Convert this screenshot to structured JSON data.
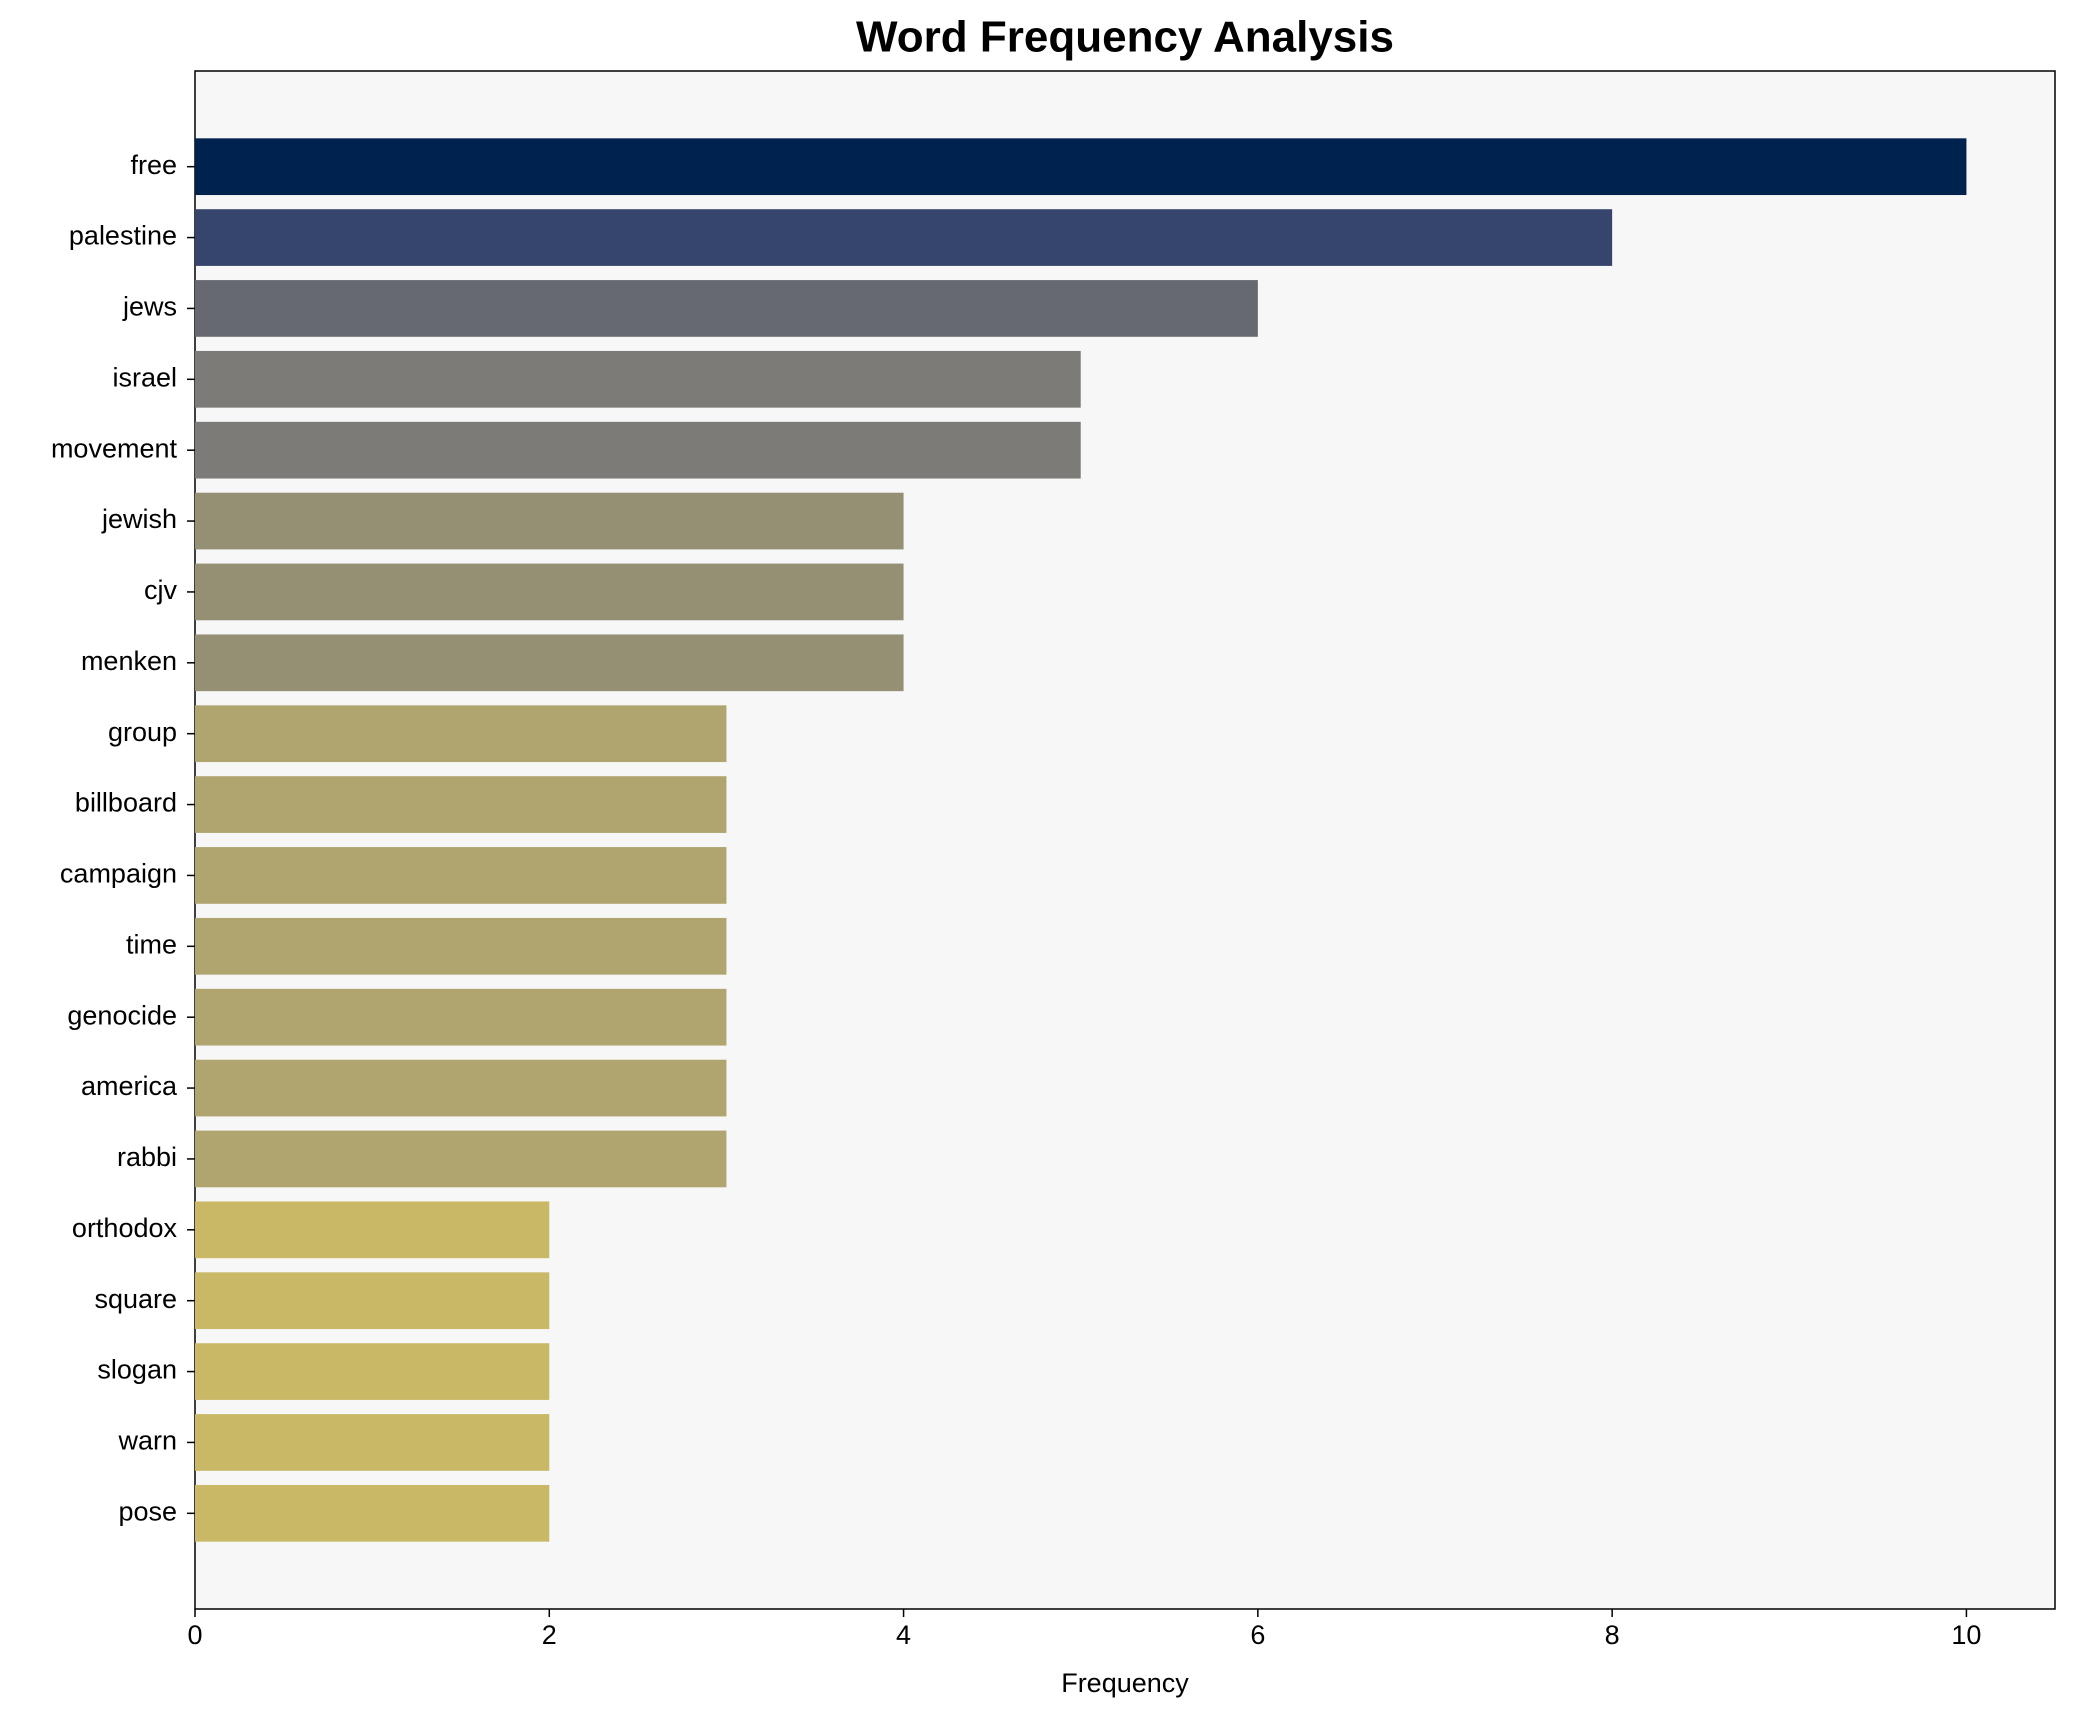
{
  "chart_data": {
    "type": "barh",
    "title": "Word Frequency Analysis",
    "x_label": "Frequency",
    "categories": [
      "free",
      "palestine",
      "jews",
      "israel",
      "movement",
      "jewish",
      "cjv",
      "menken",
      "group",
      "billboard",
      "campaign",
      "time",
      "genocide",
      "america",
      "rabbi",
      "orthodox",
      "square",
      "slogan",
      "warn",
      "pose"
    ],
    "values": [
      10,
      8,
      6,
      5,
      5,
      4,
      4,
      4,
      3,
      3,
      3,
      3,
      3,
      3,
      3,
      2,
      2,
      2,
      2,
      2
    ],
    "colors": [
      "#00224e",
      "#35456c",
      "#666970",
      "#7c7b78",
      "#7c7b78",
      "#958f74",
      "#958f74",
      "#958f74",
      "#b0a46f",
      "#b0a46f",
      "#b0a46f",
      "#b0a46f",
      "#b0a46f",
      "#b0a46f",
      "#b0a46f",
      "#c9b866",
      "#c9b866",
      "#c9b866",
      "#c9b866",
      "#c9b866"
    ],
    "xlim": [
      0,
      10.5
    ],
    "xticks": [
      0,
      2,
      4,
      6,
      8,
      10
    ],
    "grid": false
  }
}
